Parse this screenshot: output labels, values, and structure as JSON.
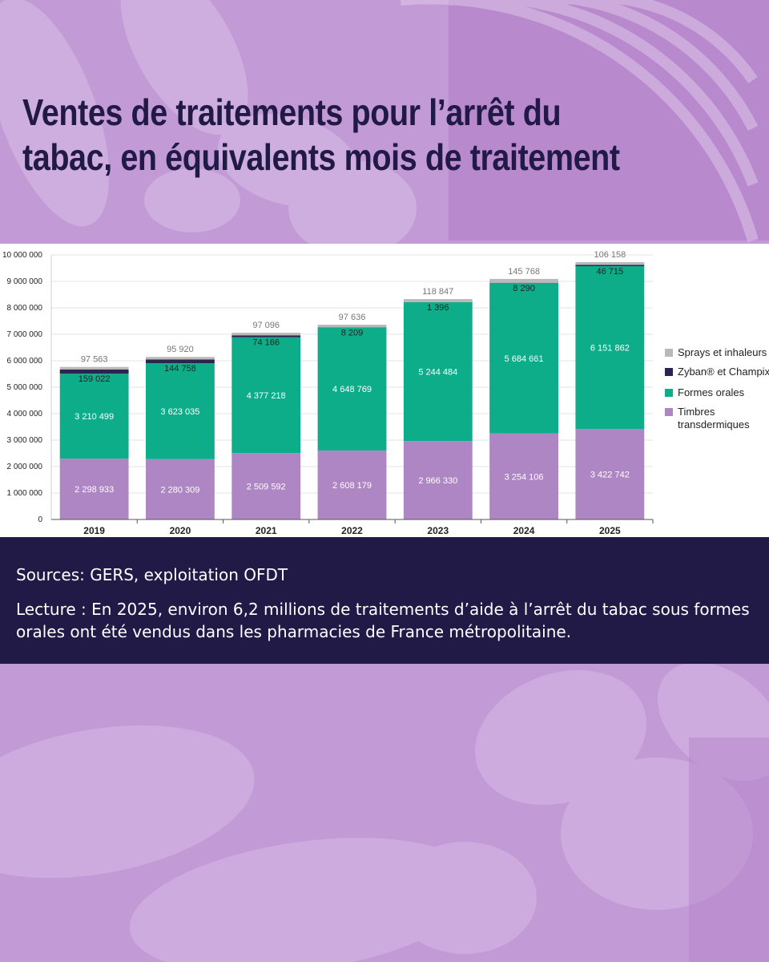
{
  "title_line1": "Ventes de traitements pour l’arrêt du",
  "title_line2": "tabac, en équivalents mois de traitement",
  "source": "Sources: GERS, exploitation OFDT",
  "reading": "Lecture :  En 2025, environ 6,2 millions de traitements d’aide à l’arrêt du tabac sous formes orales ont été vendus dans les pharmacies de France métropolitaine.",
  "colors": {
    "timbres": "#ae86c3",
    "formes_orales": "#0ead8a",
    "zyban": "#2b2350",
    "sprays": "#b9b9b9",
    "background": "#c19ad6",
    "caption_band": "#211946"
  },
  "chart_data": {
    "type": "bar",
    "stacked": true,
    "categories": [
      "2019",
      "2020",
      "2021",
      "2022",
      "2023",
      "2024",
      "2025"
    ],
    "ylim": [
      0,
      10000000
    ],
    "yticks": [
      0,
      1000000,
      2000000,
      3000000,
      4000000,
      5000000,
      6000000,
      7000000,
      8000000,
      9000000,
      10000000
    ],
    "ytick_labels": [
      "0",
      "1 000 000",
      "2 000 000",
      "3 000 000",
      "4 000 000",
      "5 000 000",
      "6 000 000",
      "7 000 000",
      "8 000 000",
      "9 000 000",
      "10 000 000"
    ],
    "grid": true,
    "legend_position": "right",
    "series": [
      {
        "key": "timbres",
        "name": "Timbres transdermiques",
        "values": [
          2298933,
          2280309,
          2509592,
          2608179,
          2966330,
          3254106,
          3422742
        ],
        "labels": [
          "2 298 933",
          "2 280 309",
          "2 509 592",
          "2 608 179",
          "2 966 330",
          "3 254 106",
          "3 422 742"
        ]
      },
      {
        "key": "formes_orales",
        "name": "Formes orales",
        "values": [
          3210499,
          3623035,
          4377218,
          4648769,
          5244484,
          5684661,
          6151862
        ],
        "labels": [
          "3 210 499",
          "3 623 035",
          "4 377 218",
          "4 648 769",
          "5 244 484",
          "5 684 661",
          "6 151 862"
        ]
      },
      {
        "key": "zyban",
        "name": "Zyban® et Champix®",
        "values": [
          159022,
          144758,
          74166,
          8209,
          1396,
          8290,
          46715
        ],
        "labels": [
          "159 022",
          "144 758",
          "74 166",
          "8 209",
          "1 396",
          "8 290",
          "46 715"
        ]
      },
      {
        "key": "sprays",
        "name": "Sprays et inhaleurs",
        "values": [
          97563,
          95920,
          97096,
          97636,
          118847,
          145768,
          106158
        ],
        "labels": [
          "97 563",
          "95 920",
          "97 096",
          "97 636",
          "118 847",
          "145 768",
          "106 158"
        ]
      }
    ],
    "legend_order": [
      "sprays",
      "zyban",
      "formes_orales",
      "timbres"
    ]
  }
}
